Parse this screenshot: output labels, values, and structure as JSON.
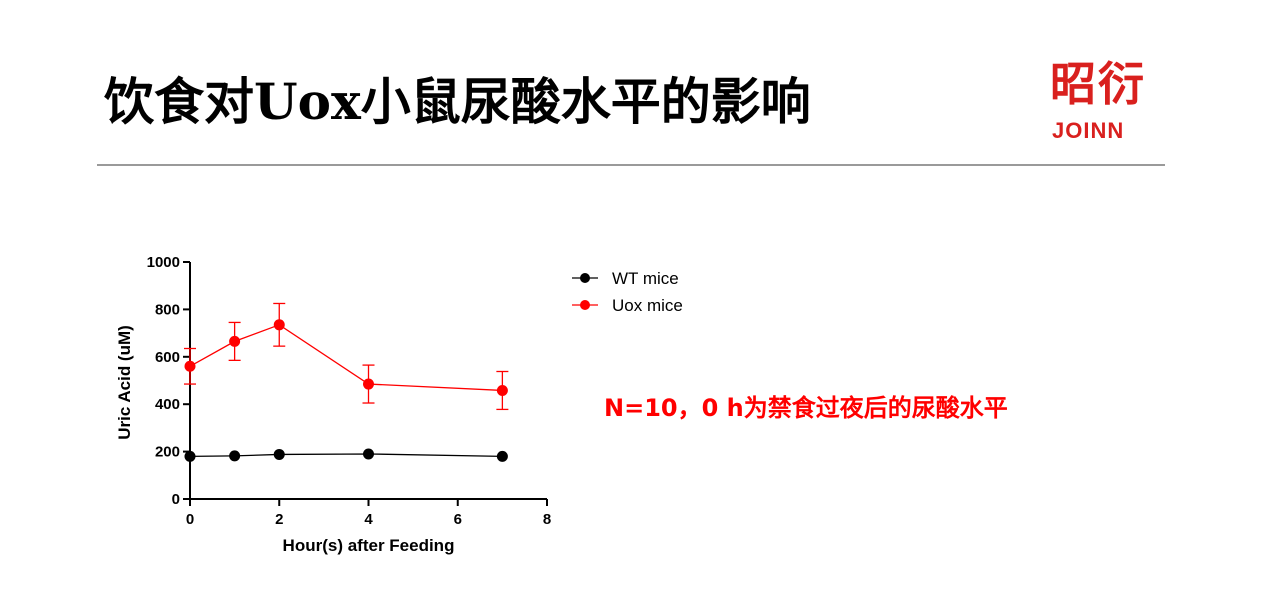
{
  "slide": {
    "title": "饮食对Uox小鼠尿酸水平的影响",
    "logo": {
      "mark_text": "昭衍",
      "brand_text": "JOINN",
      "color": "#d9201e"
    },
    "note": "N=10，0 h为禁食过夜后的尿酸水平"
  },
  "chart_data": {
    "type": "line",
    "title": "",
    "xlabel": "Hour(s) after Feeding",
    "ylabel": "Uric Acid (uM)",
    "xlim": [
      0,
      8
    ],
    "ylim": [
      0,
      1000
    ],
    "xticks": [
      0,
      2,
      4,
      6,
      8
    ],
    "yticks": [
      0,
      200,
      400,
      600,
      800,
      1000
    ],
    "grid": false,
    "legend_position": "right",
    "series": [
      {
        "name": "WT mice",
        "color": "#000000",
        "points": [
          {
            "x": 0,
            "y": 180,
            "err": 0
          },
          {
            "x": 1,
            "y": 182,
            "err": 0
          },
          {
            "x": 2,
            "y": 188,
            "err": 0
          },
          {
            "x": 4,
            "y": 190,
            "err": 0
          },
          {
            "x": 7,
            "y": 180,
            "err": 0
          }
        ]
      },
      {
        "name": "Uox mice",
        "color": "#ff0000",
        "points": [
          {
            "x": 0,
            "y": 560,
            "err": 75
          },
          {
            "x": 1,
            "y": 665,
            "err": 80
          },
          {
            "x": 2,
            "y": 735,
            "err": 90
          },
          {
            "x": 4,
            "y": 485,
            "err": 80
          },
          {
            "x": 7,
            "y": 458,
            "err": 80
          }
        ]
      }
    ]
  }
}
